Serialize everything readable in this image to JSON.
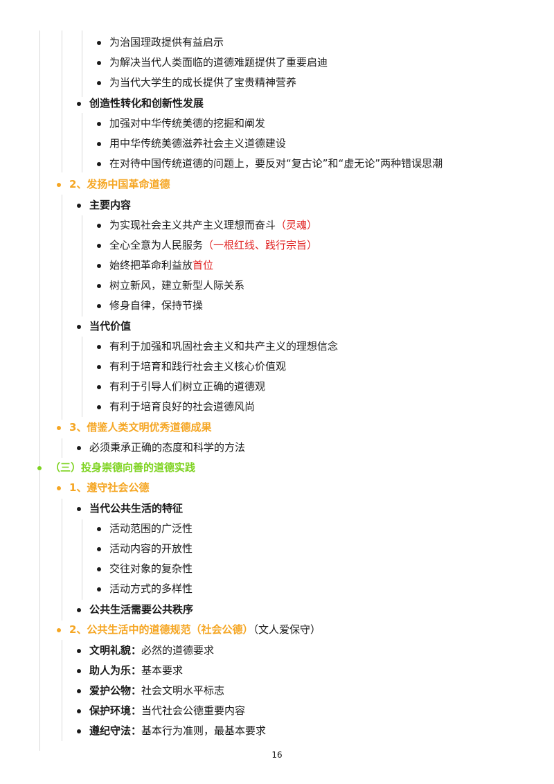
{
  "items": [
    {
      "text": "为治国理政提供有益启示"
    },
    {
      "text": "为解决当代人类面临的道德难题提供了重要启迪"
    },
    {
      "text": "为当代大学生的成长提供了宝贵精神营养"
    },
    {
      "text": "创造性转化和创新性发展"
    },
    {
      "text": "加强对中华传统美德的挖掘和阐发"
    },
    {
      "text": "用中华传统美德滋养社会主义道德建设"
    },
    {
      "text": "在对待中国传统道德的问题上，要反对“复古论”和“虚无论”两种错误思潮"
    },
    {
      "text": "2、发扬中国革命道德"
    },
    {
      "text": "主要内容"
    },
    {
      "text": "为实现社会主义共产主义理想而奋斗",
      "note": "（灵魂）"
    },
    {
      "text": "全心全意为人民服务",
      "note": "（一根红线、践行宗旨）"
    },
    {
      "text": "始终把革命利益放",
      "note": "首位"
    },
    {
      "text": "树立新风，建立新型人际关系"
    },
    {
      "text": "修身自律，保持节操"
    },
    {
      "text": "当代价值"
    },
    {
      "text": "有利于加强和巩固社会主义和共产主义的理想信念"
    },
    {
      "text": "有利于培育和践行社会主义核心价值观"
    },
    {
      "text": "有利于引导人们树立正确的道德观"
    },
    {
      "text": "有利于培育良好的社会道德风尚"
    },
    {
      "text": "3、借鉴人类文明优秀道德成果"
    },
    {
      "text": "必须秉承正确的态度和科学的方法"
    },
    {
      "text": "（三）投身崇德向善的道德实践"
    },
    {
      "text": "1、遵守社会公德"
    },
    {
      "text": "当代公共生活的特征"
    },
    {
      "text": "活动范围的广泛性"
    },
    {
      "text": "活动内容的开放性"
    },
    {
      "text": "交往对象的复杂性"
    },
    {
      "text": "活动方式的多样性"
    },
    {
      "text": "公共生活需要公共秩序"
    },
    {
      "text": "2、公共生活中的道德规范（社会公德）",
      "note": "（文人爱保守）"
    },
    {
      "text": "文明礼貌：",
      "note": "必然的道德要求"
    },
    {
      "text": "助人为乐：",
      "note": "基本要求"
    },
    {
      "text": "爱护公物：",
      "note": "社会文明水平标志"
    },
    {
      "text": "保护环境：",
      "note": "当代社会公德重要内容"
    },
    {
      "text": "遵纪守法：",
      "note": "基本行为准则，最基本要求"
    }
  ],
  "page_number": "16",
  "colors": {
    "orange": "#f5a623",
    "green": "#7ed321",
    "red": "#e02020"
  }
}
